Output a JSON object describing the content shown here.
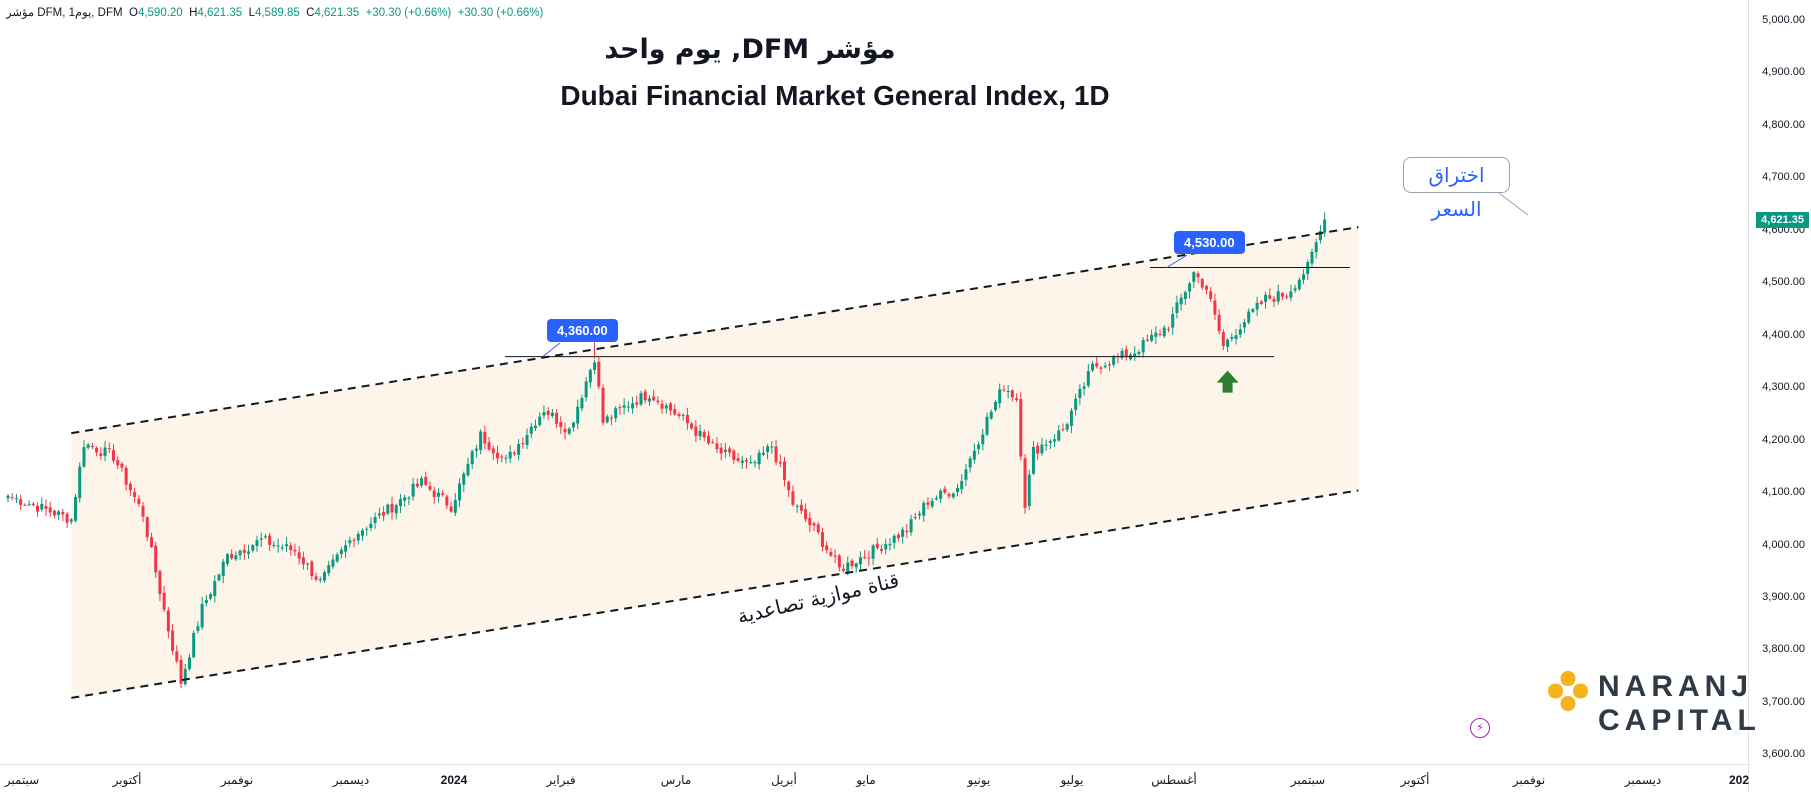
{
  "header": {
    "symbol_ar": "مؤشر",
    "symbol": "DFM",
    "interval": "يوم1",
    "exchange": "DFM",
    "open_label": "O",
    "open": "4,590.20",
    "high_label": "H",
    "high": "4,621.35",
    "low_label": "L",
    "low": "4,589.85",
    "close_label": "C",
    "close": "4,621.35",
    "change": "+30.30 (+0.66%)",
    "change_dup": "+30.30 (+0.66%)"
  },
  "titles": {
    "arabic": "مؤشر DFM, يوم واحد",
    "english": "Dubai Financial Market General Index, 1D"
  },
  "annotations": {
    "level_1": "4,360.00",
    "level_2": "4,530.00",
    "breakout": "اختراق السعر",
    "channel": "قناة موازية تصاعدية"
  },
  "last_price": "4,621.35",
  "colors": {
    "up": "#089981",
    "down": "#f23645",
    "channel_fill": "#fdf5ea",
    "label_blue": "#2962ff",
    "arrow_down": "#d32f3c",
    "arrow_up": "#2e7d32",
    "logo_orange": "#f6b21a"
  },
  "logo": {
    "line1": "NARANJ",
    "line2": "CAPITAL"
  },
  "chart_data": {
    "type": "candlestick",
    "title": "Dubai Financial Market General Index, 1D",
    "yticks": [
      5000,
      4900,
      4800,
      4700,
      4600,
      4500,
      4400,
      4300,
      4200,
      4100,
      4000,
      3900,
      3800,
      3700,
      3600
    ],
    "ytick_labels": [
      "5,000.00",
      "4,900.00",
      "4,800.00",
      "4,700.00",
      "4,600.00",
      "4,500.00",
      "4,400.00",
      "4,300.00",
      "4,200.00",
      "4,100.00",
      "4,000.00",
      "3,900.00",
      "3,800.00",
      "3,700.00",
      "3,600.00"
    ],
    "ylim": [
      3580,
      5020
    ],
    "xticks": [
      "سبتمبر",
      "أكتوبر",
      "نوفمبر",
      "ديسمبر",
      "2024",
      "فبراير",
      "مارس",
      "أبريل",
      "مايو",
      "يونيو",
      "يوليو",
      "أغسطس",
      "سبتمبر",
      "أكتوبر",
      "نوفمبر",
      "ديسمبر",
      "202"
    ],
    "xtick_bold": [
      false,
      false,
      false,
      false,
      true,
      false,
      false,
      false,
      false,
      false,
      false,
      false,
      false,
      false,
      false,
      false,
      true
    ],
    "series_close_anchors": [
      [
        0,
        4095
      ],
      [
        15,
        4050
      ],
      [
        18,
        4195
      ],
      [
        25,
        4170
      ],
      [
        32,
        4060
      ],
      [
        38,
        3840
      ],
      [
        41,
        3740
      ],
      [
        46,
        3880
      ],
      [
        52,
        3980
      ],
      [
        60,
        4010
      ],
      [
        68,
        3990
      ],
      [
        74,
        3930
      ],
      [
        82,
        4020
      ],
      [
        92,
        4080
      ],
      [
        98,
        4120
      ],
      [
        105,
        4075
      ],
      [
        112,
        4210
      ],
      [
        118,
        4160
      ],
      [
        127,
        4260
      ],
      [
        133,
        4220
      ],
      [
        139,
        4360
      ],
      [
        141,
        4235
      ],
      [
        147,
        4270
      ],
      [
        152,
        4290
      ],
      [
        160,
        4240
      ],
      [
        168,
        4180
      ],
      [
        176,
        4150
      ],
      [
        181,
        4190
      ],
      [
        186,
        4080
      ],
      [
        192,
        4020
      ],
      [
        197,
        3955
      ],
      [
        205,
        3990
      ],
      [
        213,
        4030
      ],
      [
        218,
        4085
      ],
      [
        225,
        4110
      ],
      [
        232,
        4240
      ],
      [
        236,
        4305
      ],
      [
        239,
        4280
      ],
      [
        241,
        4080
      ],
      [
        243,
        4180
      ],
      [
        250,
        4220
      ],
      [
        257,
        4340
      ],
      [
        267,
        4370
      ],
      [
        275,
        4420
      ],
      [
        281,
        4520
      ],
      [
        284,
        4490
      ],
      [
        288,
        4380
      ],
      [
        292,
        4420
      ],
      [
        298,
        4470
      ],
      [
        303,
        4480
      ],
      [
        308,
        4530
      ],
      [
        312,
        4621.35
      ]
    ],
    "horizontal_levels": [
      4360,
      4530
    ],
    "channel": {
      "upper": [
        [
          0,
          4195
        ],
        [
          320,
          4607
        ]
      ],
      "lower": [
        [
          0,
          3690
        ],
        [
          320,
          4105
        ]
      ]
    },
    "markers": [
      {
        "type": "arrow-down",
        "bar": 139,
        "price": 4360
      },
      {
        "type": "arrow-down",
        "bar": 283,
        "price": 4530
      },
      {
        "type": "arrow-up",
        "bar": 289,
        "price": 4360
      }
    ]
  }
}
